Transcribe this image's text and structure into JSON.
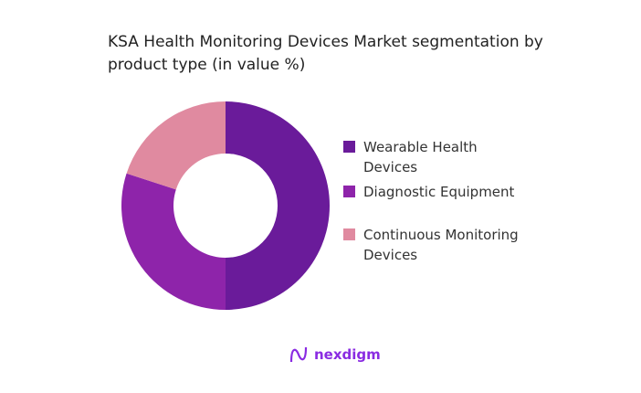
{
  "chart_data": {
    "type": "pie",
    "donut": true,
    "title": "KSA Health Monitoring Devices Market segmentation by product type (in value %)",
    "categories": [
      "Wearable Health Devices",
      "Diagnostic Equipment",
      "Continuous Monitoring Devices"
    ],
    "values": [
      50,
      30,
      20
    ],
    "colors": [
      "#6a1b9a",
      "#8e24aa",
      "#e08aa0"
    ],
    "legend": "right"
  },
  "brand": "nexdigm"
}
